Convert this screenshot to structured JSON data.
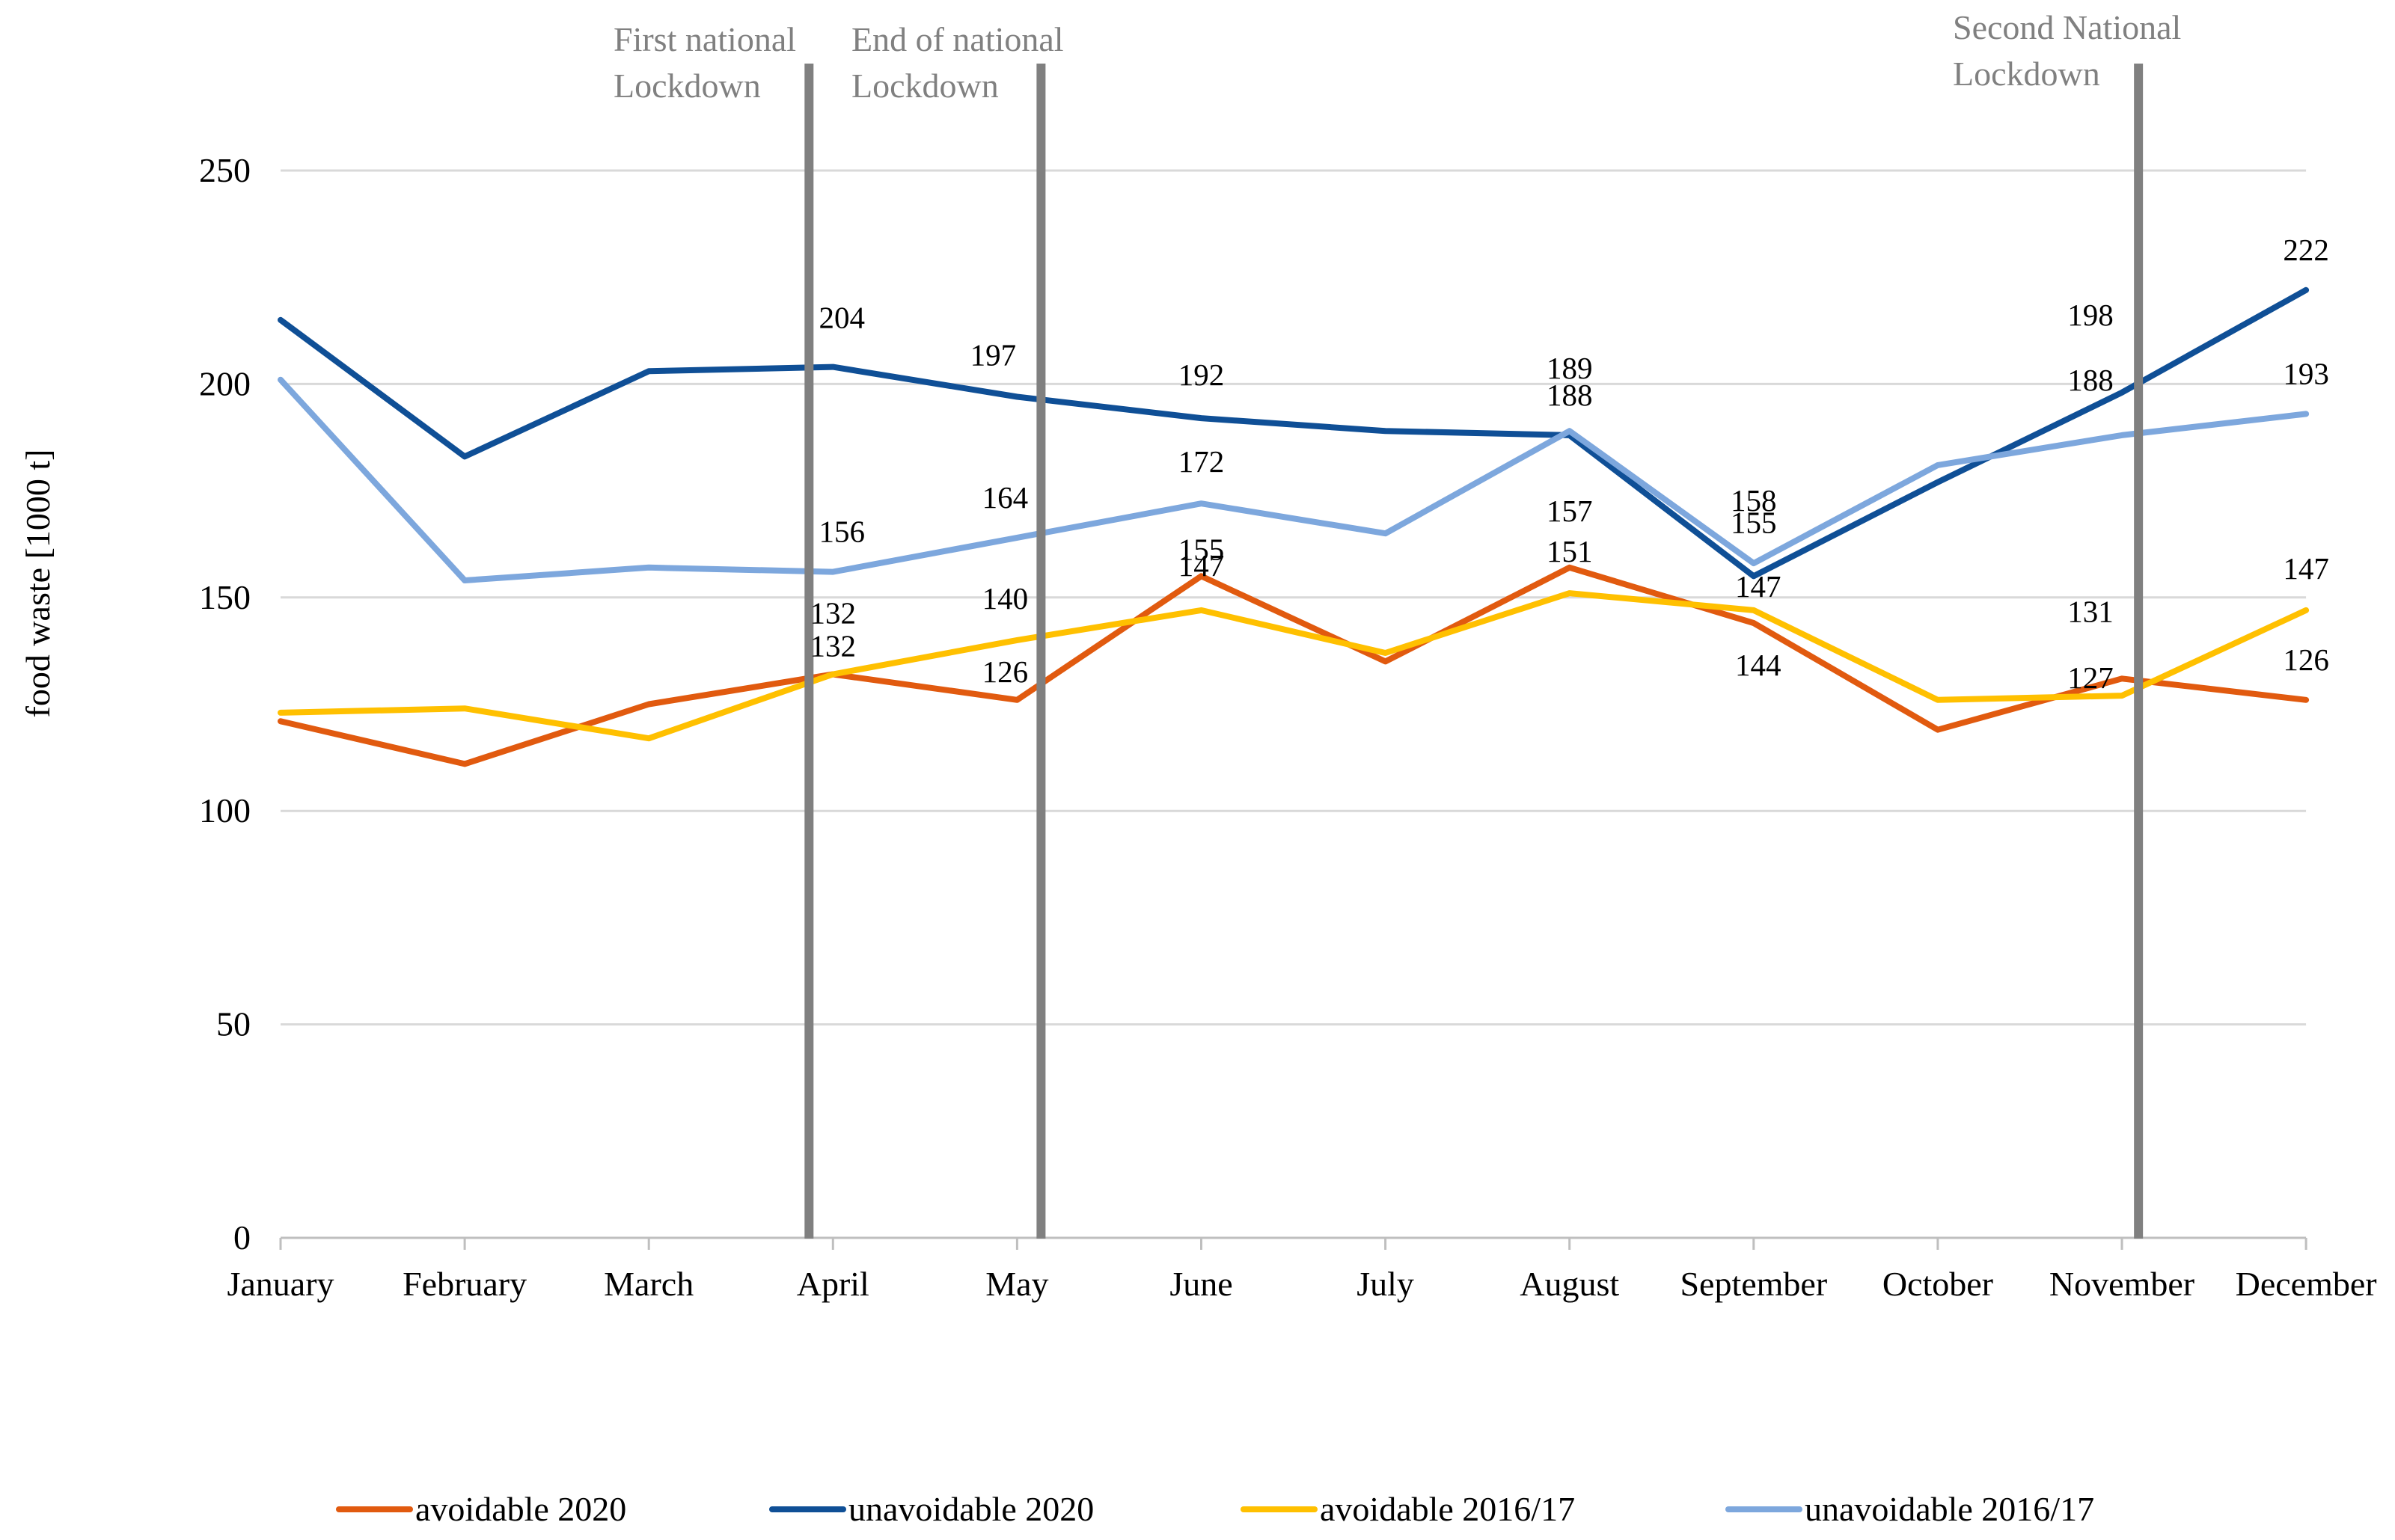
{
  "chart_data": {
    "type": "line",
    "title": "",
    "xlabel": "",
    "ylabel": "food waste [1000 t]",
    "ylim": [
      0,
      250
    ],
    "yticks": [
      "0",
      "50",
      "100",
      "150",
      "200",
      "250"
    ],
    "grid": true,
    "legend_position": "bottom",
    "categories": [
      "January",
      "February",
      "March",
      "April",
      "May",
      "June",
      "July",
      "August",
      "September",
      "October",
      "November",
      "December"
    ],
    "series": [
      {
        "name": "avoidable 2020",
        "color": "#e15a0f",
        "values": [
          121,
          111,
          125,
          132,
          126,
          155,
          135,
          157,
          144,
          119,
          131,
          126
        ],
        "labels": [
          null,
          null,
          null,
          "132",
          "126",
          "155",
          null,
          "157",
          "144",
          null,
          "131",
          "126"
        ]
      },
      {
        "name": "unavoidable 2020",
        "color": "#0f4f96",
        "values": [
          215,
          183,
          203,
          204,
          197,
          192,
          189,
          188,
          155,
          177,
          198,
          222
        ],
        "labels": [
          null,
          null,
          null,
          "204",
          "197",
          "192",
          null,
          "188",
          "155",
          null,
          "198",
          "222"
        ]
      },
      {
        "name": "avoidable 2016/17",
        "color": "#ffc000",
        "values": [
          123,
          124,
          117,
          132,
          140,
          147,
          137,
          151,
          147,
          126,
          127,
          147
        ],
        "labels": [
          null,
          null,
          null,
          "132",
          "140",
          "147",
          null,
          "151",
          "147",
          null,
          "127",
          "147"
        ]
      },
      {
        "name": "unavoidable 2016/17",
        "color": "#7da7dd",
        "values": [
          201,
          154,
          157,
          156,
          164,
          172,
          165,
          189,
          158,
          181,
          188,
          193
        ],
        "labels": [
          null,
          null,
          null,
          "156",
          "164",
          "172",
          null,
          "189",
          "158",
          null,
          "188",
          "193"
        ]
      }
    ],
    "events": [
      {
        "label_line1": "First national",
        "label_line2": "Lockdown",
        "position_index": 2.87
      },
      {
        "label_line1": "End of national",
        "label_line2": "Lockdown",
        "position_index": 4.13
      },
      {
        "label_line1": "Second National",
        "label_line2": "Lockdown",
        "position_index": 10.09
      }
    ],
    "event_line_color": "#808080",
    "grid_color": "#d9d9d9",
    "axis_color": "#bfbfbf"
  }
}
